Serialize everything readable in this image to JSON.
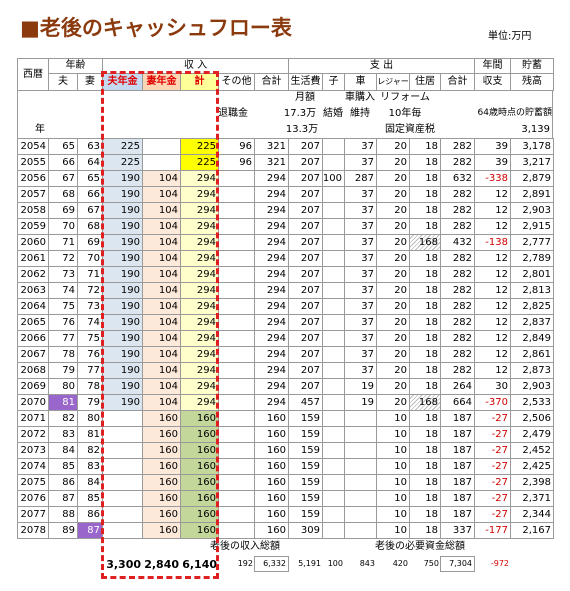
{
  "title": "■老後のキャッシュフロー表",
  "unit": "単位:万円",
  "header": {
    "year": "西暦",
    "age": "年齢",
    "income": "収 入",
    "expense": "支 出",
    "annual": "年間",
    "savings": "貯蓄",
    "columns": [
      "夫",
      "妻",
      "夫年金",
      "妻年金",
      "計",
      "その他",
      "合計",
      "生活費",
      "子",
      "車",
      "レジャー",
      "住居",
      "合計",
      "収支",
      "残高"
    ]
  },
  "notes": [
    "月額",
    "車購入",
    "リフォーム",
    "退職金",
    "17.3万",
    "結婚",
    "維持",
    "10年毎",
    "64歳時点の貯蓄額",
    "年",
    "13.3万",
    "固定資産税",
    "3,139"
  ],
  "rows": [
    [
      "2054",
      "65",
      "63",
      "225",
      null,
      "225",
      "96",
      "321",
      "207",
      null,
      "37",
      "20",
      "18",
      "282",
      "39",
      "3,178"
    ],
    [
      "2055",
      "66",
      "64",
      "225",
      null,
      "225",
      "96",
      "321",
      "207",
      null,
      "37",
      "20",
      "18",
      "282",
      "39",
      "3,217"
    ],
    [
      "2056",
      "67",
      "65",
      "190",
      "104",
      "294",
      null,
      "294",
      "207",
      "100",
      "287",
      "20",
      "18",
      "632",
      "-338",
      "2,879"
    ],
    [
      "2057",
      "68",
      "66",
      "190",
      "104",
      "294",
      null,
      "294",
      "207",
      null,
      "37",
      "20",
      "18",
      "282",
      "12",
      "2,891"
    ],
    [
      "2058",
      "69",
      "67",
      "190",
      "104",
      "294",
      null,
      "294",
      "207",
      null,
      "37",
      "20",
      "18",
      "282",
      "12",
      "2,903"
    ],
    [
      "2059",
      "70",
      "68",
      "190",
      "104",
      "294",
      null,
      "294",
      "207",
      null,
      "37",
      "20",
      "18",
      "282",
      "12",
      "2,915"
    ],
    [
      "2060",
      "71",
      "69",
      "190",
      "104",
      "294",
      null,
      "294",
      "207",
      null,
      "37",
      "20",
      "168",
      "432",
      "-138",
      "2,777"
    ],
    [
      "2061",
      "72",
      "70",
      "190",
      "104",
      "294",
      null,
      "294",
      "207",
      null,
      "37",
      "20",
      "18",
      "282",
      "12",
      "2,789"
    ],
    [
      "2062",
      "73",
      "71",
      "190",
      "104",
      "294",
      null,
      "294",
      "207",
      null,
      "37",
      "20",
      "18",
      "282",
      "12",
      "2,801"
    ],
    [
      "2063",
      "74",
      "72",
      "190",
      "104",
      "294",
      null,
      "294",
      "207",
      null,
      "37",
      "20",
      "18",
      "282",
      "12",
      "2,813"
    ],
    [
      "2064",
      "75",
      "73",
      "190",
      "104",
      "294",
      null,
      "294",
      "207",
      null,
      "37",
      "20",
      "18",
      "282",
      "12",
      "2,825"
    ],
    [
      "2065",
      "76",
      "74",
      "190",
      "104",
      "294",
      null,
      "294",
      "207",
      null,
      "37",
      "20",
      "18",
      "282",
      "12",
      "2,837"
    ],
    [
      "2066",
      "77",
      "75",
      "190",
      "104",
      "294",
      null,
      "294",
      "207",
      null,
      "37",
      "20",
      "18",
      "282",
      "12",
      "2,849"
    ],
    [
      "2067",
      "78",
      "76",
      "190",
      "104",
      "294",
      null,
      "294",
      "207",
      null,
      "37",
      "20",
      "18",
      "282",
      "12",
      "2,861"
    ],
    [
      "2068",
      "79",
      "77",
      "190",
      "104",
      "294",
      null,
      "294",
      "207",
      null,
      "37",
      "20",
      "18",
      "282",
      "12",
      "2,873"
    ],
    [
      "2069",
      "80",
      "78",
      "190",
      "104",
      "294",
      null,
      "294",
      "207",
      null,
      "19",
      "20",
      "18",
      "264",
      "30",
      "2,903"
    ],
    [
      "2070",
      "81",
      "79",
      "190",
      "104",
      "294",
      null,
      "294",
      "457",
      null,
      "19",
      "20",
      "168",
      "664",
      "-370",
      "2,533"
    ],
    [
      "2071",
      "82",
      "80",
      null,
      "160",
      "160",
      null,
      "160",
      "159",
      null,
      null,
      "10",
      "18",
      "187",
      "-27",
      "2,506"
    ],
    [
      "2072",
      "83",
      "81",
      null,
      "160",
      "160",
      null,
      "160",
      "159",
      null,
      null,
      "10",
      "18",
      "187",
      "-27",
      "2,479"
    ],
    [
      "2073",
      "84",
      "82",
      null,
      "160",
      "160",
      null,
      "160",
      "159",
      null,
      null,
      "10",
      "18",
      "187",
      "-27",
      "2,452"
    ],
    [
      "2074",
      "85",
      "83",
      null,
      "160",
      "160",
      null,
      "160",
      "159",
      null,
      null,
      "10",
      "18",
      "187",
      "-27",
      "2,425"
    ],
    [
      "2075",
      "86",
      "84",
      null,
      "160",
      "160",
      null,
      "160",
      "159",
      null,
      null,
      "10",
      "18",
      "187",
      "-27",
      "2,398"
    ],
    [
      "2076",
      "87",
      "85",
      null,
      "160",
      "160",
      null,
      "160",
      "159",
      null,
      null,
      "10",
      "18",
      "187",
      "-27",
      "2,371"
    ],
    [
      "2077",
      "88",
      "86",
      null,
      "160",
      "160",
      null,
      "160",
      "159",
      null,
      null,
      "10",
      "18",
      "187",
      "-27",
      "2,344"
    ],
    [
      "2078",
      "89",
      "87",
      null,
      "160",
      "160",
      null,
      "160",
      "309",
      null,
      null,
      "10",
      "18",
      "337",
      "-177",
      "2,167"
    ]
  ],
  "totals": {
    "income_label": "老後の収入総額",
    "expense_label": "老後の必要資金総額",
    "values": [
      "3,300",
      "2,840",
      "6,140",
      "192",
      "6,332",
      "5,191",
      "100",
      "843",
      "420",
      "750",
      "7,304",
      "-972"
    ]
  }
}
